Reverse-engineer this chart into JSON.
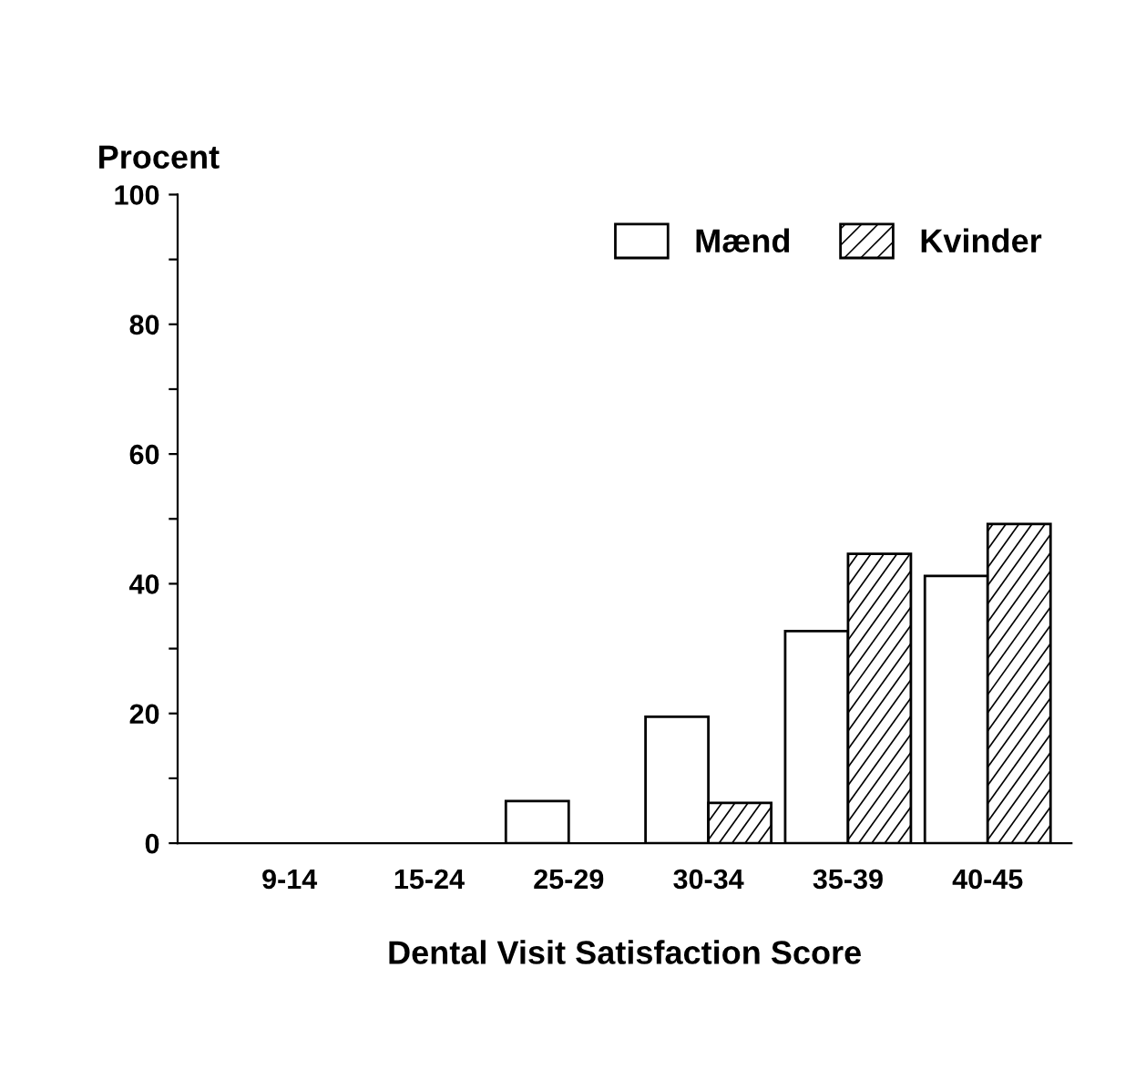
{
  "chart_data": {
    "type": "bar",
    "ylabel": "Procent",
    "xlabel": "Dental Visit Satisfaction Score",
    "categories": [
      "9-14",
      "15-24",
      "25-29",
      "30-34",
      "35-39",
      "40-45"
    ],
    "series": [
      {
        "name": "Mænd",
        "color": "#ffffff",
        "values": [
          0,
          0,
          6.5,
          19.5,
          32.7,
          41.2
        ]
      },
      {
        "name": "Kvinder",
        "color": "#ffffff",
        "values": [
          0,
          0,
          0,
          6.2,
          44.6,
          49.2
        ]
      }
    ],
    "ylim": [
      0,
      100
    ],
    "yticks": [
      0,
      {
        "value": 10,
        "label": null
      },
      20,
      {
        "value": 30,
        "label": null
      },
      40,
      {
        "value": 50,
        "label": null
      },
      60,
      {
        "value": 70,
        "label": null
      },
      80,
      {
        "value": 90,
        "label": null
      },
      100
    ],
    "grid": false,
    "legend": "top right"
  }
}
